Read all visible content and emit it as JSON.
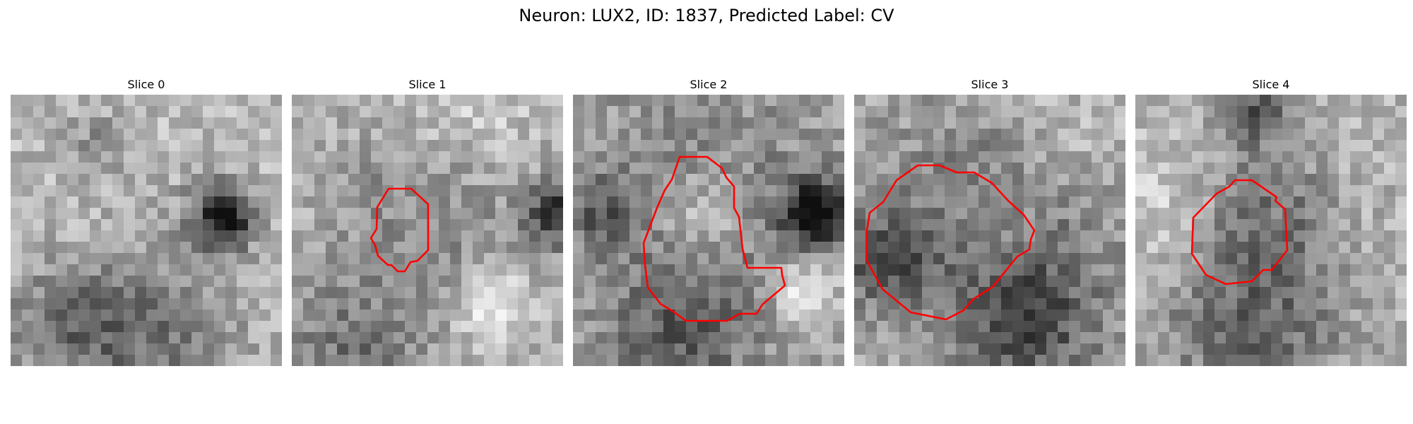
{
  "figure": {
    "title": "Neuron: LUX2, ID: 1837, Predicted Label: CV"
  },
  "panels": [
    {
      "title": "Slice 0",
      "has_contour": false
    },
    {
      "title": "Slice 1",
      "has_contour": true
    },
    {
      "title": "Slice 2",
      "has_contour": true
    },
    {
      "title": "Slice 3",
      "has_contour": true
    },
    {
      "title": "Slice 4",
      "has_contour": true
    }
  ],
  "colors": {
    "contour": "#ff0000",
    "background": "#ffffff"
  }
}
